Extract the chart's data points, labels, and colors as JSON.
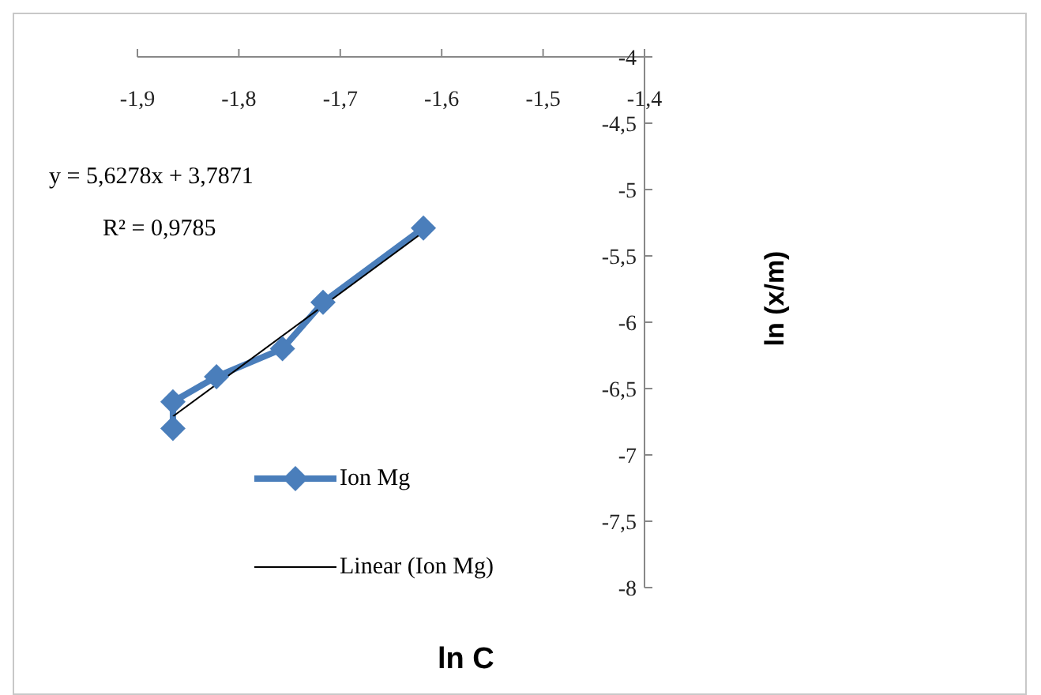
{
  "chart_data": {
    "type": "line",
    "xlabel": "ln C",
    "ylabel": "ln (x/m)",
    "annotations": [
      "y = 5,6278x + 3,7871",
      "R² = 0,9785"
    ],
    "series": [
      {
        "name": "Ion Mg",
        "color": "#4a7ebb",
        "marker": "diamond",
        "x": [
          -1.865,
          -1.865,
          -1.822,
          -1.757,
          -1.717,
          -1.618
        ],
        "values": [
          -6.8,
          -6.6,
          -6.41,
          -6.2,
          -5.85,
          -5.29
        ]
      },
      {
        "name": "Linear (Ion Mg)",
        "color": "#000000",
        "marker": "none",
        "x": [
          -1.865,
          -1.618
        ],
        "values": [
          -6.71,
          -5.32
        ]
      }
    ],
    "xlim": [
      -1.9,
      -1.4
    ],
    "ylim": [
      -8,
      -4
    ],
    "xticks": [
      {
        "value": -1.9,
        "label": "-1,9"
      },
      {
        "value": -1.8,
        "label": "-1,8"
      },
      {
        "value": -1.7,
        "label": "-1,7"
      },
      {
        "value": -1.6,
        "label": "-1,6"
      },
      {
        "value": -1.5,
        "label": "-1,5"
      },
      {
        "value": -1.4,
        "label": "-1,4"
      }
    ],
    "yticks": [
      {
        "value": -8,
        "label": "-8"
      },
      {
        "value": -7.5,
        "label": "-7,5"
      },
      {
        "value": -7,
        "label": "-7"
      },
      {
        "value": -6.5,
        "label": "-6,5"
      },
      {
        "value": -6,
        "label": "-6"
      },
      {
        "value": -5.5,
        "label": "-5,5"
      },
      {
        "value": -5,
        "label": "-5"
      },
      {
        "value": -4.5,
        "label": "-4,5"
      },
      {
        "value": -4,
        "label": "-4"
      }
    ],
    "grid": false,
    "legend": "bottom left"
  }
}
